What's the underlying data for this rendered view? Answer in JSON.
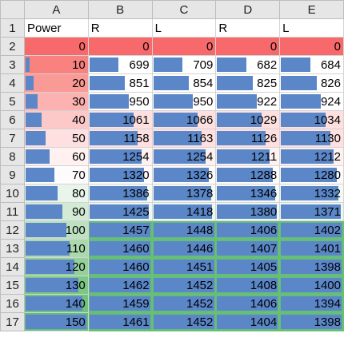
{
  "columns": [
    "A",
    "B",
    "C",
    "D",
    "E"
  ],
  "header_row": {
    "row_number": "1",
    "cells": [
      "Power",
      "R",
      "L",
      "R",
      "L"
    ]
  },
  "rows": [
    {
      "row_number": "2",
      "cells": [
        "0",
        "0",
        "0",
        "0",
        "0"
      ],
      "bars": [
        0,
        0,
        0,
        0,
        0
      ],
      "bg": [
        "#f8696b",
        "#f8696b",
        "#f8696b",
        "#f8696b",
        "#f8696b"
      ]
    },
    {
      "row_number": "3",
      "cells": [
        "10",
        "699",
        "709",
        "682",
        "684"
      ],
      "bars": [
        0.07,
        0.48,
        0.48,
        0.48,
        0.49
      ],
      "bg": [
        "#f9827f",
        "#fff",
        "#fff",
        "#fff",
        "#fff"
      ]
    },
    {
      "row_number": "4",
      "cells": [
        "20",
        "851",
        "854",
        "825",
        "826"
      ],
      "bars": [
        0.13,
        0.58,
        0.59,
        0.59,
        0.59
      ],
      "bg": [
        "#fa9a97",
        "#fff",
        "#fff",
        "#fff",
        "#fff"
      ]
    },
    {
      "row_number": "5",
      "cells": [
        "30",
        "950",
        "950",
        "922",
        "924"
      ],
      "bars": [
        0.2,
        0.65,
        0.65,
        0.65,
        0.66
      ],
      "bg": [
        "#fbb2b0",
        "#fff",
        "#fff",
        "#fff",
        "#fff"
      ]
    },
    {
      "row_number": "6",
      "cells": [
        "40",
        "1061",
        "1066",
        "1029",
        "1034"
      ],
      "bars": [
        0.27,
        0.73,
        0.73,
        0.73,
        0.74
      ],
      "bg": [
        "#fcc9c8",
        "#fde0df",
        "#fde0df",
        "#fde0df",
        "#fde0df"
      ]
    },
    {
      "row_number": "7",
      "cells": [
        "50",
        "1158",
        "1163",
        "1126",
        "1130"
      ],
      "bars": [
        0.33,
        0.79,
        0.8,
        0.8,
        0.81
      ],
      "bg": [
        "#fde0df",
        "#fde0df",
        "#fde0df",
        "#fde0df",
        "#fde0df"
      ]
    },
    {
      "row_number": "8",
      "cells": [
        "60",
        "1254",
        "1254",
        "1211",
        "1212"
      ],
      "bars": [
        0.4,
        0.86,
        0.86,
        0.86,
        0.87
      ],
      "bg": [
        "#fef1f0",
        "#fef1f0",
        "#fef1f0",
        "#fef1f0",
        "#fef1f0"
      ]
    },
    {
      "row_number": "9",
      "cells": [
        "70",
        "1320",
        "1326",
        "1288",
        "1280"
      ],
      "bars": [
        0.47,
        0.9,
        0.91,
        0.91,
        0.92
      ],
      "bg": [
        "#fdfbfb",
        "#fdfbfb",
        "#fdfbfb",
        "#fdfbfb",
        "#fdfbfb"
      ]
    },
    {
      "row_number": "10",
      "cells": [
        "80",
        "1386",
        "1378",
        "1346",
        "1332"
      ],
      "bars": [
        0.53,
        0.95,
        0.95,
        0.95,
        0.95
      ],
      "bg": [
        "#e9f5ea",
        "#f4fbf5",
        "#f4fbf5",
        "#f4fbf5",
        "#f4fbf5"
      ]
    },
    {
      "row_number": "11",
      "cells": [
        "90",
        "1425",
        "1418",
        "1380",
        "1371"
      ],
      "bars": [
        0.6,
        0.98,
        0.97,
        0.98,
        0.98
      ],
      "bg": [
        "#d3ebd5",
        "#eef8ef",
        "#eef8ef",
        "#eef8ef",
        "#eef8ef"
      ]
    },
    {
      "row_number": "12",
      "cells": [
        "100",
        "1457",
        "1448",
        "1406",
        "1402"
      ],
      "bars": [
        0.67,
        1.0,
        1.0,
        1.0,
        1.0
      ],
      "bg": [
        "#bee2c1",
        "#63be7b",
        "#63be7b",
        "#63be7b",
        "#63be7b"
      ]
    },
    {
      "row_number": "13",
      "cells": [
        "110",
        "1460",
        "1446",
        "1407",
        "1401"
      ],
      "bars": [
        0.73,
        1.0,
        1.0,
        1.0,
        1.0
      ],
      "bg": [
        "#a9d9ad",
        "#63be7b",
        "#63be7b",
        "#63be7b",
        "#63be7b"
      ]
    },
    {
      "row_number": "14",
      "cells": [
        "120",
        "1460",
        "1451",
        "1405",
        "1398"
      ],
      "bars": [
        0.8,
        1.0,
        1.0,
        1.0,
        1.0
      ],
      "bg": [
        "#94d099",
        "#63be7b",
        "#63be7b",
        "#63be7b",
        "#63be7b"
      ]
    },
    {
      "row_number": "15",
      "cells": [
        "130",
        "1462",
        "1452",
        "1408",
        "1400"
      ],
      "bars": [
        0.87,
        1.0,
        1.0,
        1.0,
        1.0
      ],
      "bg": [
        "#7fc785",
        "#63be7b",
        "#63be7b",
        "#63be7b",
        "#63be7b"
      ]
    },
    {
      "row_number": "16",
      "cells": [
        "140",
        "1459",
        "1452",
        "1406",
        "1394"
      ],
      "bars": [
        0.93,
        1.0,
        1.0,
        1.0,
        1.0
      ],
      "bg": [
        "#71c27d",
        "#63be7b",
        "#63be7b",
        "#63be7b",
        "#63be7b"
      ]
    },
    {
      "row_number": "17",
      "cells": [
        "150",
        "1461",
        "1452",
        "1404",
        "1398"
      ],
      "bars": [
        1.0,
        1.0,
        1.0,
        1.0,
        1.0
      ],
      "bg": [
        "#63be7b",
        "#63be7b",
        "#63be7b",
        "#63be7b",
        "#63be7b"
      ]
    }
  ],
  "colors": {
    "data_bar": "#5b87c9",
    "header_bg": "#e6e6e6",
    "grid": "#d4d4d4"
  }
}
